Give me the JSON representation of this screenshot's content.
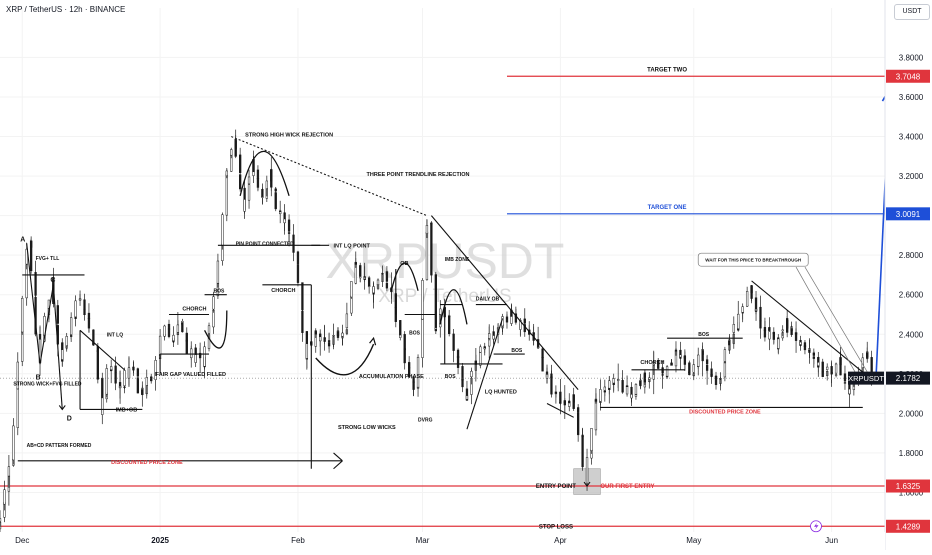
{
  "header": {
    "title": "XRP / TetherUS · 12h · BINANCE",
    "currency": "USDT"
  },
  "watermark": {
    "main": "XRPUSDT",
    "sub": "XRP / TetherUS"
  },
  "colors": {
    "candle": "#1a1a1a",
    "red": "#e0353d",
    "blue": "#1e4fd8",
    "axis_text": "#131722",
    "grid": "#f3f3f3"
  },
  "chart_data": {
    "type": "candlestick",
    "symbol": "XRPUSDT",
    "ylim": [
      1.4,
      4.05
    ],
    "y_ticks": [
      1.6,
      1.8,
      2.0,
      2.2,
      2.4,
      2.6,
      2.8,
      3.0,
      3.2,
      3.4,
      3.6,
      3.8
    ],
    "x_labels": [
      {
        "label": "Dec",
        "date": "2024-12-01"
      },
      {
        "label": "2025",
        "date": "2025-01-01"
      },
      {
        "label": "Feb",
        "date": "2025-02-01"
      },
      {
        "label": "Mar",
        "date": "2025-03-01"
      },
      {
        "label": "Apr",
        "date": "2025-04-01"
      },
      {
        "label": "May",
        "date": "2025-05-01"
      },
      {
        "label": "Jun",
        "date": "2025-06-01"
      }
    ],
    "x_range": [
      "2024-11-26",
      "2025-06-13"
    ],
    "path": [
      [
        "2024-11-26",
        1.42
      ],
      [
        "2024-11-29",
        1.78
      ],
      [
        "2024-12-02",
        2.75
      ],
      [
        "2024-12-03",
        2.86
      ],
      [
        "2024-12-05",
        2.28
      ],
      [
        "2024-12-07",
        2.55
      ],
      [
        "2024-12-08",
        2.65
      ],
      [
        "2024-12-10",
        2.25
      ],
      [
        "2024-12-12",
        2.4
      ],
      [
        "2024-12-14",
        2.6
      ],
      [
        "2024-12-16",
        2.45
      ],
      [
        "2024-12-18",
        2.3
      ],
      [
        "2024-12-19",
        2.02
      ],
      [
        "2024-12-21",
        2.25
      ],
      [
        "2024-12-23",
        2.12
      ],
      [
        "2024-12-26",
        2.25
      ],
      [
        "2024-12-28",
        2.1
      ],
      [
        "2024-12-31",
        2.2
      ],
      [
        "2025-01-02",
        2.42
      ],
      [
        "2025-01-04",
        2.38
      ],
      [
        "2025-01-06",
        2.45
      ],
      [
        "2025-01-08",
        2.3
      ],
      [
        "2025-01-11",
        2.25
      ],
      [
        "2025-01-13",
        2.5
      ],
      [
        "2025-01-15",
        2.85
      ],
      [
        "2025-01-16",
        3.2
      ],
      [
        "2025-01-17",
        3.3
      ],
      [
        "2025-01-18",
        3.4
      ],
      [
        "2025-01-20",
        3.0
      ],
      [
        "2025-01-22",
        3.25
      ],
      [
        "2025-01-24",
        3.1
      ],
      [
        "2025-01-26",
        3.2
      ],
      [
        "2025-01-28",
        3.0
      ],
      [
        "2025-01-30",
        2.95
      ],
      [
        "2025-02-01",
        2.75
      ],
      [
        "2025-02-03",
        2.3
      ],
      [
        "2025-02-05",
        2.4
      ],
      [
        "2025-02-07",
        2.35
      ],
      [
        "2025-02-10",
        2.4
      ],
      [
        "2025-02-12",
        2.45
      ],
      [
        "2025-02-14",
        2.75
      ],
      [
        "2025-02-16",
        2.7
      ],
      [
        "2025-02-18",
        2.6
      ],
      [
        "2025-02-20",
        2.7
      ],
      [
        "2025-02-22",
        2.65
      ],
      [
        "2025-02-24",
        2.4
      ],
      [
        "2025-02-26",
        2.25
      ],
      [
        "2025-02-28",
        2.1
      ],
      [
        "2025-03-02",
        2.9
      ],
      [
        "2025-03-03",
        2.95
      ],
      [
        "2025-03-04",
        2.4
      ],
      [
        "2025-03-06",
        2.55
      ],
      [
        "2025-03-08",
        2.4
      ],
      [
        "2025-03-10",
        2.2
      ],
      [
        "2025-03-11",
        2.05
      ],
      [
        "2025-03-13",
        2.25
      ],
      [
        "2025-03-15",
        2.35
      ],
      [
        "2025-03-17",
        2.4
      ],
      [
        "2025-03-19",
        2.45
      ],
      [
        "2025-03-21",
        2.5
      ],
      [
        "2025-03-23",
        2.45
      ],
      [
        "2025-03-25",
        2.4
      ],
      [
        "2025-03-27",
        2.35
      ],
      [
        "2025-03-29",
        2.2
      ],
      [
        "2025-03-31",
        2.1
      ],
      [
        "2025-04-02",
        2.05
      ],
      [
        "2025-04-04",
        2.1
      ],
      [
        "2025-04-06",
        1.85
      ],
      [
        "2025-04-07",
        1.65
      ],
      [
        "2025-04-08",
        1.85
      ],
      [
        "2025-04-09",
        2.05
      ],
      [
        "2025-04-11",
        2.1
      ],
      [
        "2025-04-13",
        2.15
      ],
      [
        "2025-04-15",
        2.15
      ],
      [
        "2025-04-17",
        2.1
      ],
      [
        "2025-04-19",
        2.15
      ],
      [
        "2025-04-21",
        2.2
      ],
      [
        "2025-04-23",
        2.25
      ],
      [
        "2025-04-25",
        2.2
      ],
      [
        "2025-04-27",
        2.3
      ],
      [
        "2025-04-29",
        2.25
      ],
      [
        "2025-05-01",
        2.2
      ],
      [
        "2025-05-03",
        2.3
      ],
      [
        "2025-05-05",
        2.2
      ],
      [
        "2025-05-07",
        2.15
      ],
      [
        "2025-05-09",
        2.35
      ],
      [
        "2025-05-11",
        2.45
      ],
      [
        "2025-05-13",
        2.55
      ],
      [
        "2025-05-14",
        2.62
      ],
      [
        "2025-05-16",
        2.45
      ],
      [
        "2025-05-18",
        2.4
      ],
      [
        "2025-05-20",
        2.35
      ],
      [
        "2025-05-22",
        2.45
      ],
      [
        "2025-05-24",
        2.4
      ],
      [
        "2025-05-26",
        2.35
      ],
      [
        "2025-05-28",
        2.3
      ],
      [
        "2025-05-30",
        2.2
      ],
      [
        "2025-06-01",
        2.2
      ],
      [
        "2025-06-03",
        2.25
      ],
      [
        "2025-06-05",
        2.12
      ],
      [
        "2025-06-07",
        2.18
      ],
      [
        "2025-06-09",
        2.28
      ],
      [
        "2025-06-10",
        2.22
      ]
    ],
    "levels": [
      {
        "name": "target_two",
        "label": "TARGET TWO",
        "price": 3.7048,
        "price_label": "3.7048",
        "color": "red"
      },
      {
        "name": "target_one",
        "label": "TARGET ONE",
        "price": 3.0091,
        "price_label": "3.0091",
        "color": "blue"
      },
      {
        "name": "entry",
        "label": "ENTRY POINT",
        "price": 1.6325,
        "price_label": "1.6325",
        "color": "red"
      },
      {
        "name": "stop",
        "label": "STOP LOSS",
        "price": 1.4289,
        "price_label": "1.4289",
        "color": "red"
      }
    ],
    "current_price": {
      "symbol": "XRPUSDT",
      "price": 2.1782,
      "price_label": "2.1782"
    },
    "annotations": {
      "a": "A",
      "b": "B",
      "c": "C",
      "d": "D",
      "fvg_tll": "FVG+ TLL",
      "strong_wick": "STRONG WICK+FVG FILLED",
      "abcd": "AB=CD PATTERN FORMED",
      "int_lq": "INT LQ",
      "imb_ob": "IMB+OB",
      "fair_gap": "FAIR GAP VALUED FILLED",
      "discount_1": "DISCOUNTED PRICE ZONE",
      "choch_1": "CHORCH",
      "bos_1": "BOS",
      "pin_point": "PIN POINT CONNECTED",
      "strong_high_wick": "STRONG HIGH WICK REJECTION",
      "three_point": "THREE POINT TRENDLINE REJECTION",
      "int_lq_point": "INT LQ POINT",
      "choch_2": "CHORCH",
      "strong_low": "STRONG LOW WICKS",
      "accumulation": "ACCUMULATION PHASE",
      "ob": "OB",
      "bos_2": "BOS",
      "dvrg": "DVRG",
      "imb_zone": "IMB ZONE",
      "bos_3": "BOS",
      "daily_ob": "DAILY OB",
      "bos_4": "BOS",
      "lq_hunted": "LQ HUNTED",
      "entry_note": "OUR FIRST ENTRY",
      "choch_3": "CHORCH",
      "bos_5": "BOS",
      "discount_2": "DISCOUNTED PRICE ZONE",
      "wait_note": "WAIT FOR THIS PRICE TO BREAKTHROUGH"
    }
  }
}
